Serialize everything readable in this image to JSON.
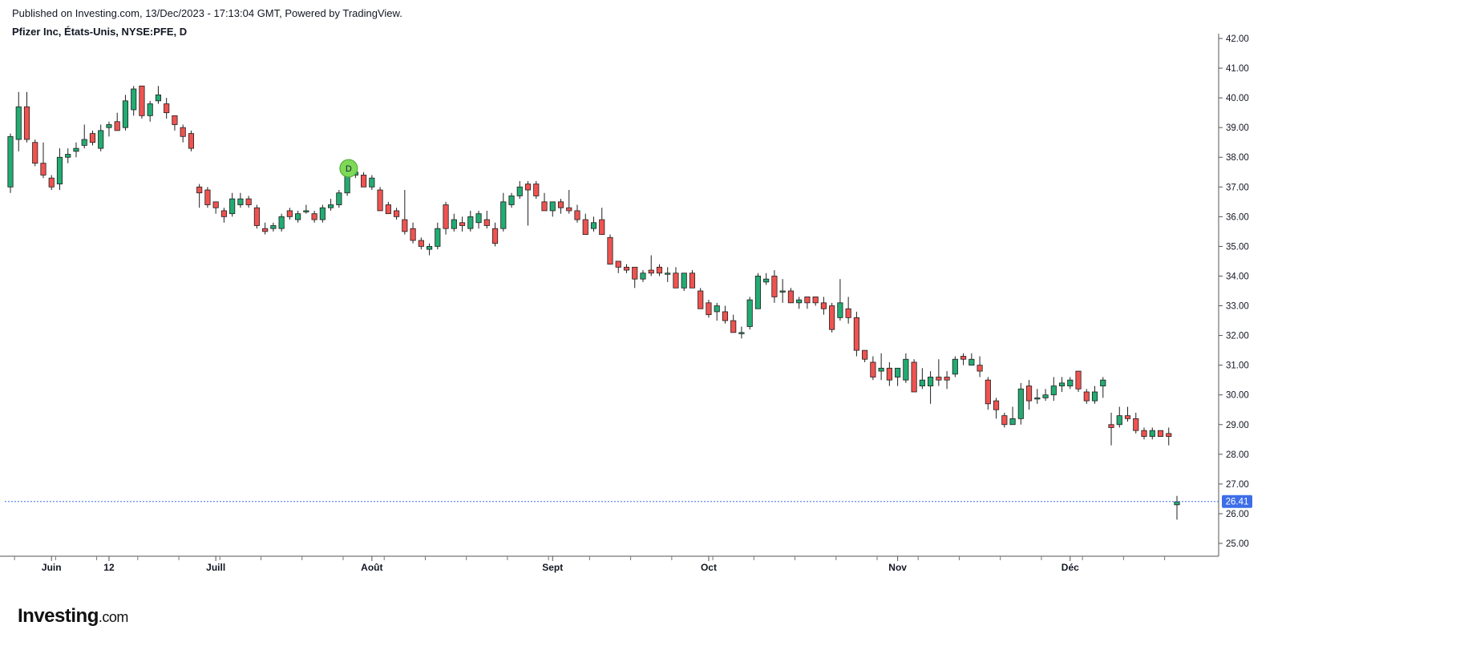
{
  "header": {
    "published": "Published on Investing.com, 13/Dec/2023 - 17:13:04 GMT, Powered by TradingView.",
    "symbol_line": "Pfizer Inc, États-Unis, NYSE:PFE, D"
  },
  "logo": {
    "brand": "Investing",
    "tld": ".com"
  },
  "colors": {
    "up": "#22ab72",
    "down": "#ef5350",
    "price_line": "#3d6ee8",
    "price_label_bg": "#3d6ee8",
    "dividend_badge": "#7ed957"
  },
  "chart_data": {
    "type": "candlestick",
    "title": "Pfizer Inc, États-Unis, NYSE:PFE, D",
    "ylim": [
      25.0,
      42.0
    ],
    "y_ticks": [
      "25.00",
      "26.00",
      "27.00",
      "28.00",
      "29.00",
      "30.00",
      "31.00",
      "32.00",
      "33.00",
      "34.00",
      "35.00",
      "36.00",
      "37.00",
      "38.00",
      "39.00",
      "40.00",
      "41.00",
      "42.00"
    ],
    "x_labels": [
      {
        "label": "Juin",
        "index": 5
      },
      {
        "label": "12",
        "index": 12
      },
      {
        "label": "Juill",
        "index": 25
      },
      {
        "label": "Août",
        "index": 44
      },
      {
        "label": "Sept",
        "index": 66
      },
      {
        "label": "Oct",
        "index": 85
      },
      {
        "label": "Nov",
        "index": 108
      },
      {
        "label": "Déc",
        "index": 129
      }
    ],
    "last_price": "26.41",
    "last_price_value": 26.41,
    "dividend_marker": {
      "label": "D",
      "index": 40
    },
    "candles": [
      [
        37.0,
        38.8,
        36.8,
        38.7
      ],
      [
        38.6,
        40.2,
        38.2,
        39.7
      ],
      [
        39.7,
        40.2,
        38.5,
        38.6
      ],
      [
        38.5,
        38.6,
        37.7,
        37.8
      ],
      [
        37.8,
        38.5,
        37.3,
        37.4
      ],
      [
        37.3,
        37.4,
        36.9,
        37.0
      ],
      [
        37.1,
        38.3,
        36.9,
        38.0
      ],
      [
        38.0,
        38.3,
        37.8,
        38.1
      ],
      [
        38.2,
        38.5,
        38.0,
        38.3
      ],
      [
        38.4,
        39.1,
        38.3,
        38.6
      ],
      [
        38.8,
        38.9,
        38.4,
        38.5
      ],
      [
        38.3,
        39.1,
        38.2,
        38.9
      ],
      [
        39.0,
        39.2,
        38.7,
        39.1
      ],
      [
        39.2,
        39.5,
        38.9,
        38.9
      ],
      [
        39.0,
        40.1,
        38.9,
        39.9
      ],
      [
        39.6,
        40.4,
        39.4,
        40.3
      ],
      [
        40.4,
        40.4,
        39.3,
        39.4
      ],
      [
        39.4,
        39.9,
        39.2,
        39.8
      ],
      [
        39.9,
        40.4,
        39.8,
        40.1
      ],
      [
        39.8,
        40.0,
        39.3,
        39.5
      ],
      [
        39.4,
        39.4,
        38.9,
        39.1
      ],
      [
        39.0,
        39.1,
        38.5,
        38.7
      ],
      [
        38.8,
        38.9,
        38.2,
        38.3
      ],
      [
        37.0,
        37.1,
        36.3,
        36.8
      ],
      [
        36.9,
        37.0,
        36.3,
        36.4
      ],
      [
        36.5,
        36.5,
        36.1,
        36.3
      ],
      [
        36.2,
        36.3,
        35.8,
        36.0
      ],
      [
        36.1,
        36.8,
        36.0,
        36.6
      ],
      [
        36.4,
        36.8,
        36.3,
        36.6
      ],
      [
        36.6,
        36.7,
        36.3,
        36.4
      ],
      [
        36.3,
        36.4,
        35.6,
        35.7
      ],
      [
        35.6,
        35.8,
        35.4,
        35.5
      ],
      [
        35.6,
        35.8,
        35.5,
        35.7
      ],
      [
        35.6,
        36.1,
        35.5,
        36.0
      ],
      [
        36.2,
        36.3,
        35.9,
        36.0
      ],
      [
        35.9,
        36.2,
        35.8,
        36.1
      ],
      [
        36.2,
        36.4,
        36.1,
        36.2
      ],
      [
        36.1,
        36.2,
        35.8,
        35.9
      ],
      [
        35.9,
        36.4,
        35.8,
        36.3
      ],
      [
        36.3,
        36.6,
        36.2,
        36.4
      ],
      [
        36.4,
        36.9,
        36.3,
        36.8
      ],
      [
        36.8,
        37.8,
        36.7,
        37.5
      ],
      [
        37.4,
        37.8,
        37.3,
        37.5
      ],
      [
        37.4,
        37.5,
        37.0,
        37.0
      ],
      [
        37.0,
        37.4,
        36.9,
        37.3
      ],
      [
        36.9,
        37.0,
        36.2,
        36.2
      ],
      [
        36.4,
        36.5,
        36.1,
        36.1
      ],
      [
        36.2,
        36.3,
        35.9,
        36.0
      ],
      [
        35.9,
        36.9,
        35.4,
        35.5
      ],
      [
        35.6,
        35.8,
        35.1,
        35.2
      ],
      [
        35.2,
        35.3,
        34.9,
        35.0
      ],
      [
        34.9,
        35.1,
        34.7,
        35.0
      ],
      [
        35.0,
        35.8,
        34.9,
        35.6
      ],
      [
        36.4,
        36.5,
        35.4,
        35.6
      ],
      [
        35.6,
        36.1,
        35.5,
        35.9
      ],
      [
        35.8,
        36.0,
        35.5,
        35.7
      ],
      [
        35.6,
        36.2,
        35.5,
        36.0
      ],
      [
        35.8,
        36.2,
        35.6,
        36.1
      ],
      [
        35.9,
        36.2,
        35.6,
        35.7
      ],
      [
        35.6,
        35.8,
        35.0,
        35.1
      ],
      [
        35.6,
        36.8,
        35.5,
        36.5
      ],
      [
        36.4,
        36.8,
        36.3,
        36.7
      ],
      [
        36.7,
        37.2,
        36.6,
        37.0
      ],
      [
        37.1,
        37.2,
        35.7,
        36.9
      ],
      [
        37.1,
        37.2,
        36.6,
        36.7
      ],
      [
        36.5,
        36.8,
        36.2,
        36.2
      ],
      [
        36.2,
        36.5,
        36.0,
        36.5
      ],
      [
        36.5,
        36.6,
        36.1,
        36.3
      ],
      [
        36.3,
        36.9,
        36.1,
        36.2
      ],
      [
        36.2,
        36.4,
        35.8,
        35.9
      ],
      [
        35.9,
        36.1,
        35.4,
        35.4
      ],
      [
        35.6,
        36.0,
        35.5,
        35.8
      ],
      [
        35.9,
        36.3,
        35.4,
        35.4
      ],
      [
        35.3,
        35.4,
        34.4,
        34.4
      ],
      [
        34.5,
        34.5,
        34.1,
        34.3
      ],
      [
        34.3,
        34.4,
        34.1,
        34.2
      ],
      [
        34.3,
        34.3,
        33.6,
        33.9
      ],
      [
        33.9,
        34.2,
        33.8,
        34.1
      ],
      [
        34.2,
        34.7,
        34.0,
        34.1
      ],
      [
        34.3,
        34.4,
        34.0,
        34.1
      ],
      [
        34.1,
        34.3,
        33.8,
        34.1
      ],
      [
        34.1,
        34.3,
        33.7,
        33.6
      ],
      [
        33.6,
        34.1,
        33.5,
        34.1
      ],
      [
        34.1,
        34.2,
        33.6,
        33.6
      ],
      [
        33.5,
        33.6,
        32.9,
        32.9
      ],
      [
        33.1,
        33.2,
        32.6,
        32.7
      ],
      [
        32.8,
        33.1,
        32.5,
        33.0
      ],
      [
        32.8,
        33.0,
        32.4,
        32.5
      ],
      [
        32.5,
        32.7,
        32.1,
        32.1
      ],
      [
        32.1,
        32.3,
        31.9,
        32.1
      ],
      [
        32.3,
        33.3,
        32.2,
        33.2
      ],
      [
        32.9,
        34.1,
        32.9,
        34.0
      ],
      [
        33.8,
        34.1,
        33.7,
        33.9
      ],
      [
        34.0,
        34.2,
        33.1,
        33.3
      ],
      [
        33.5,
        33.9,
        33.1,
        33.5
      ],
      [
        33.5,
        33.6,
        33.1,
        33.1
      ],
      [
        33.1,
        33.3,
        32.9,
        33.2
      ],
      [
        33.3,
        33.3,
        32.9,
        33.1
      ],
      [
        33.3,
        33.3,
        33.0,
        33.1
      ],
      [
        33.1,
        33.3,
        32.7,
        32.9
      ],
      [
        33.0,
        33.1,
        32.1,
        32.2
      ],
      [
        32.6,
        33.9,
        32.5,
        33.1
      ],
      [
        32.9,
        33.3,
        32.4,
        32.6
      ],
      [
        32.6,
        32.8,
        31.3,
        31.5
      ],
      [
        31.5,
        31.5,
        31.1,
        31.2
      ],
      [
        31.1,
        31.3,
        30.5,
        30.6
      ],
      [
        30.8,
        31.4,
        30.5,
        30.9
      ],
      [
        30.9,
        31.1,
        30.3,
        30.5
      ],
      [
        30.6,
        30.9,
        30.3,
        30.9
      ],
      [
        30.5,
        31.4,
        30.4,
        31.2
      ],
      [
        31.1,
        31.2,
        30.1,
        30.1
      ],
      [
        30.3,
        30.9,
        30.2,
        30.5
      ],
      [
        30.3,
        30.8,
        29.7,
        30.6
      ],
      [
        30.6,
        31.2,
        30.3,
        30.5
      ],
      [
        30.6,
        30.8,
        30.2,
        30.5
      ],
      [
        30.7,
        31.3,
        30.6,
        31.2
      ],
      [
        31.3,
        31.4,
        31.0,
        31.2
      ],
      [
        31.0,
        31.4,
        31.0,
        31.2
      ],
      [
        31.0,
        31.3,
        30.6,
        30.8
      ],
      [
        30.5,
        30.6,
        29.5,
        29.7
      ],
      [
        29.8,
        29.9,
        29.2,
        29.5
      ],
      [
        29.3,
        29.4,
        28.9,
        29.0
      ],
      [
        29.0,
        29.6,
        29.0,
        29.2
      ],
      [
        29.2,
        30.4,
        29.0,
        30.2
      ],
      [
        30.3,
        30.5,
        29.5,
        29.8
      ],
      [
        29.9,
        30.2,
        29.7,
        29.9
      ],
      [
        29.9,
        30.2,
        29.8,
        30.0
      ],
      [
        30.0,
        30.6,
        29.8,
        30.3
      ],
      [
        30.3,
        30.6,
        30.1,
        30.4
      ],
      [
        30.3,
        30.6,
        30.2,
        30.5
      ],
      [
        30.8,
        30.8,
        30.1,
        30.2
      ],
      [
        30.1,
        30.2,
        29.7,
        29.8
      ],
      [
        29.8,
        30.3,
        29.7,
        30.1
      ],
      [
        30.3,
        30.6,
        29.9,
        30.5
      ],
      [
        29.0,
        29.4,
        28.3,
        28.9
      ],
      [
        29.0,
        29.6,
        28.9,
        29.3
      ],
      [
        29.3,
        29.6,
        29.1,
        29.2
      ],
      [
        29.2,
        29.4,
        28.7,
        28.8
      ],
      [
        28.8,
        28.9,
        28.5,
        28.6
      ],
      [
        28.6,
        28.9,
        28.5,
        28.8
      ],
      [
        28.8,
        28.8,
        28.6,
        28.6
      ],
      [
        28.7,
        28.9,
        28.3,
        28.6
      ],
      [
        26.3,
        26.6,
        25.8,
        26.4
      ]
    ]
  }
}
